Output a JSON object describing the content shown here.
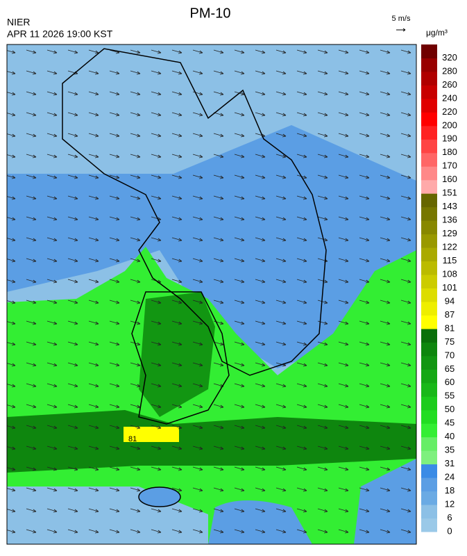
{
  "header": {
    "title": "PM-10",
    "agency": "NIER",
    "datetime": "APR 11 2026 19:00 KST"
  },
  "wind_scale": {
    "label": "5 m/s"
  },
  "map": {
    "contour_label": "81"
  },
  "colorbar": {
    "unit": "μg/m³",
    "levels": [
      0,
      6,
      12,
      18,
      24,
      31,
      35,
      40,
      45,
      50,
      55,
      60,
      65,
      70,
      75,
      81,
      87,
      94,
      101,
      108,
      115,
      122,
      129,
      136,
      143,
      151,
      160,
      170,
      180,
      190,
      200,
      220,
      240,
      260,
      280,
      320
    ],
    "colors": [
      "#9ac9e8",
      "#8cc0e6",
      "#6aaae4",
      "#5b9ee4",
      "#3a8be6",
      "#7ef07e",
      "#66ee66",
      "#33ee33",
      "#22dd22",
      "#1ccc1c",
      "#19b819",
      "#15a815",
      "#129612",
      "#0e860e",
      "#0a700a",
      "#ffff00",
      "#eeee00",
      "#dddd00",
      "#cccc00",
      "#bbbb00",
      "#aaaa00",
      "#999900",
      "#888800",
      "#777700",
      "#666600",
      "#ffaaaa",
      "#ff8888",
      "#ff6666",
      "#ff4444",
      "#ff2222",
      "#ff0000",
      "#e00000",
      "#c80000",
      "#b00000",
      "#980000",
      "#700000"
    ]
  }
}
